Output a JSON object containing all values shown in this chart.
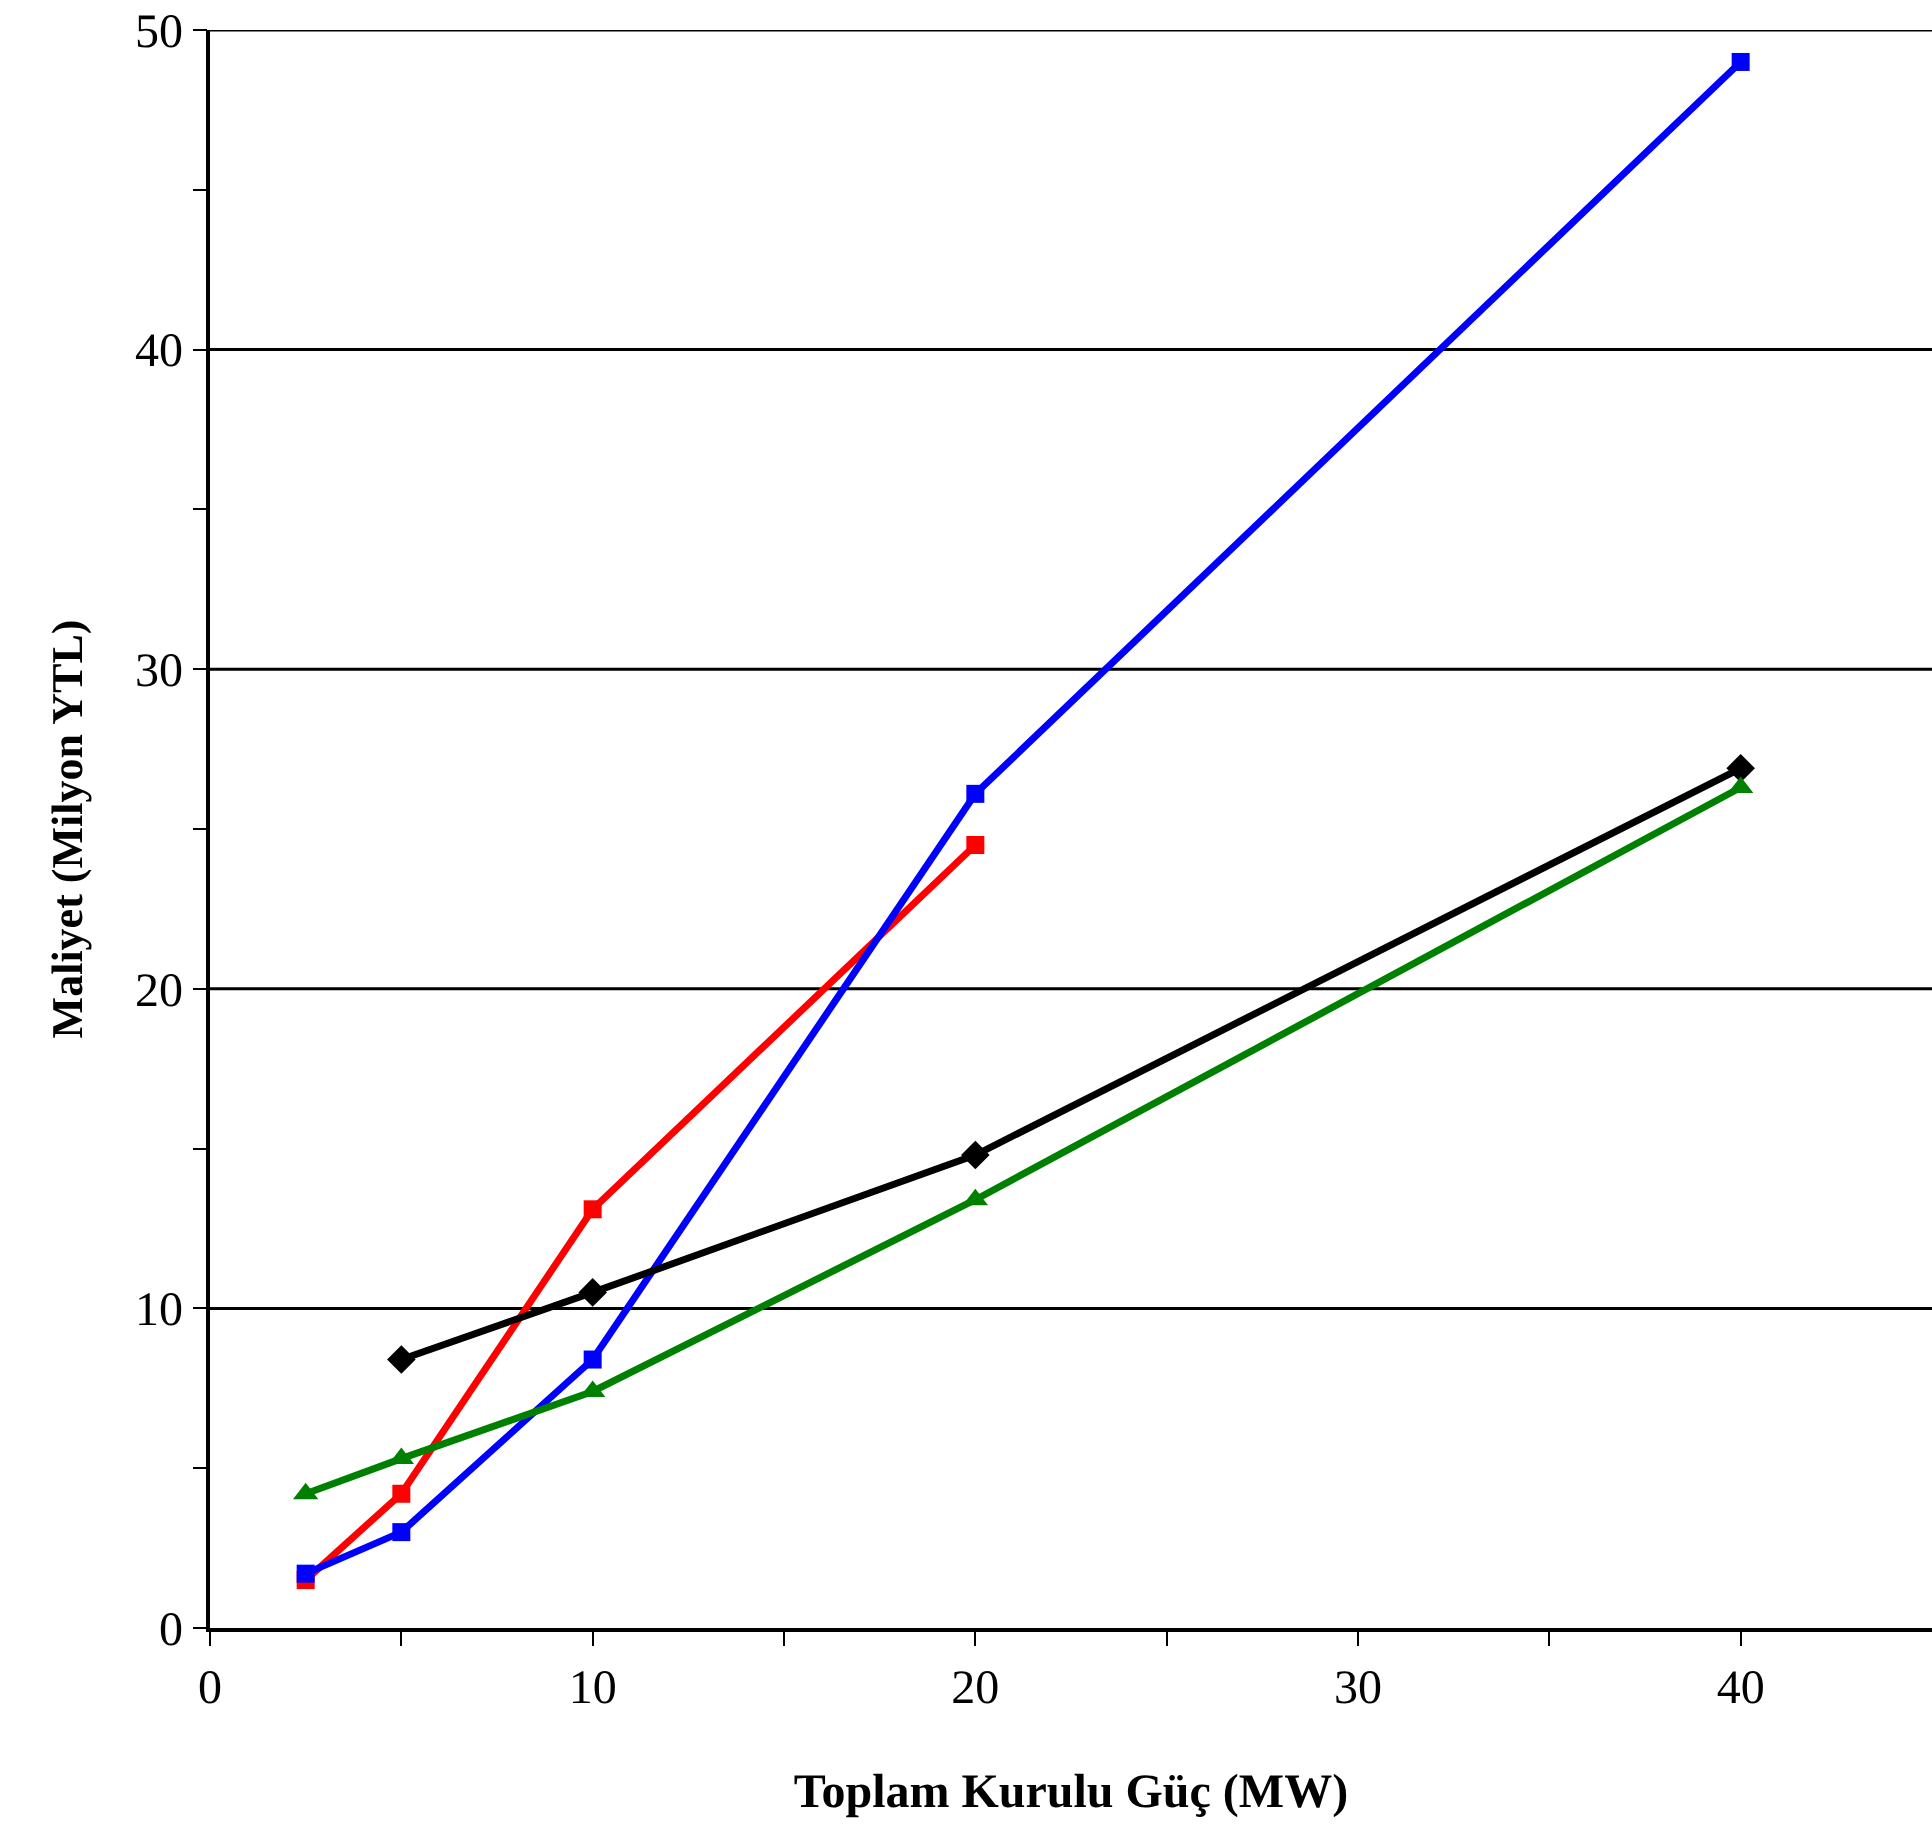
{
  "chart_data": {
    "type": "line",
    "xlabel": "Toplam Kurulu Güç (MW)",
    "ylabel": "Maliyet (Milyon YTL)",
    "xlim": [
      0,
      45
    ],
    "ylim": [
      0,
      50
    ],
    "xticks": [
      0,
      {
        "value": 5,
        "label": null
      },
      10,
      {
        "value": 15,
        "label": null
      },
      20,
      {
        "value": 25,
        "label": null
      },
      30,
      {
        "value": 35,
        "label": null
      },
      40
    ],
    "yticks": [
      0,
      {
        "value": 5,
        "label": null
      },
      10,
      {
        "value": 15,
        "label": null
      },
      20,
      {
        "value": 25,
        "label": null
      },
      30,
      {
        "value": 35,
        "label": null
      },
      40,
      {
        "value": 45,
        "label": null
      },
      50
    ],
    "grid": "y",
    "series": [
      {
        "color": "#ff0000",
        "marker": "square",
        "x": [
          2.5,
          5,
          10,
          20
        ],
        "values": [
          1.5,
          4.2,
          13.1,
          24.5
        ]
      },
      {
        "color": "#0000ff",
        "marker": "square",
        "x": [
          2.5,
          5,
          10,
          20,
          40
        ],
        "values": [
          1.7,
          3.0,
          8.4,
          26.1,
          49.0
        ]
      },
      {
        "color": "#000000",
        "marker": "diamond",
        "x": [
          5,
          10,
          20,
          40
        ],
        "values": [
          8.4,
          10.5,
          14.8,
          26.9
        ]
      },
      {
        "color": "#008000",
        "marker": "triangle",
        "x": [
          2.5,
          5,
          10,
          20,
          40
        ],
        "values": [
          4.2,
          5.3,
          7.4,
          13.4,
          26.3
        ]
      }
    ]
  }
}
